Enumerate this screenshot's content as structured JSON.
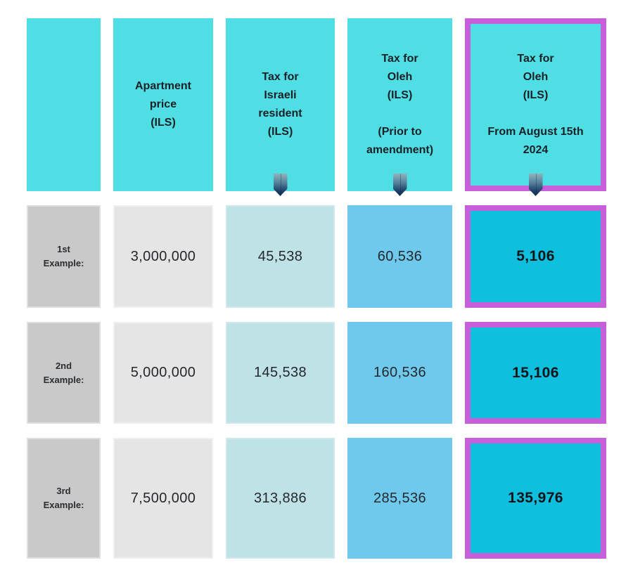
{
  "headers": {
    "empty": "",
    "apartment": "Apartment\nprice\n(ILS)",
    "israeli": "Tax for\nIsraeli\nresident\n(ILS)",
    "oleh_prior": "Tax for\nOleh\n(ILS)\n\n(Prior to\namendment)",
    "oleh_new": "Tax for\nOleh\n(ILS)\n\nFrom August 15th\n2024"
  },
  "rows": [
    {
      "label": "1st\nExample:",
      "price": "3,000,000",
      "tax_israeli": "45,538",
      "tax_oleh_prior": "60,536",
      "tax_oleh_new": "5,106"
    },
    {
      "label": "2nd\nExample:",
      "price": "5,000,000",
      "tax_israeli": "145,538",
      "tax_oleh_prior": "160,536",
      "tax_oleh_new": "15,106"
    },
    {
      "label": "3rd\nExample:",
      "price": "7,500,000",
      "tax_israeli": "313,886",
      "tax_oleh_prior": "285,536",
      "tax_oleh_new": "135,976"
    }
  ],
  "icons": {
    "down_arrow": "down-arrow-icon"
  },
  "colors": {
    "header_bg": "#50dee5",
    "highlight_border": "#c75eda",
    "label_bg": "#c9c9c9",
    "price_bg": "#e5e5e5",
    "tax_israeli_bg": "#bfe2e6",
    "tax_oleh_prior_bg": "#6fc9ec",
    "tax_oleh_new_bg": "#0ebfde",
    "arrow_gradient_top": "#93b2bc",
    "arrow_gradient_bottom": "#122c52",
    "text": "#1d2129"
  },
  "chart_data": {
    "type": "table",
    "columns": [
      "",
      "Apartment price (ILS)",
      "Tax for Israeli resident (ILS)",
      "Tax for Oleh (ILS) (Prior to amendment)",
      "Tax for Oleh (ILS) From August 15th 2024"
    ],
    "rows": [
      [
        "1st Example:",
        3000000,
        45538,
        60536,
        5106
      ],
      [
        "2nd Example:",
        5000000,
        145538,
        160536,
        15106
      ],
      [
        "3rd Example:",
        7500000,
        313886,
        285536,
        135976
      ]
    ],
    "highlighted_column": "Tax for Oleh (ILS) From August 15th 2024",
    "legend_position": "none",
    "grid": false
  }
}
